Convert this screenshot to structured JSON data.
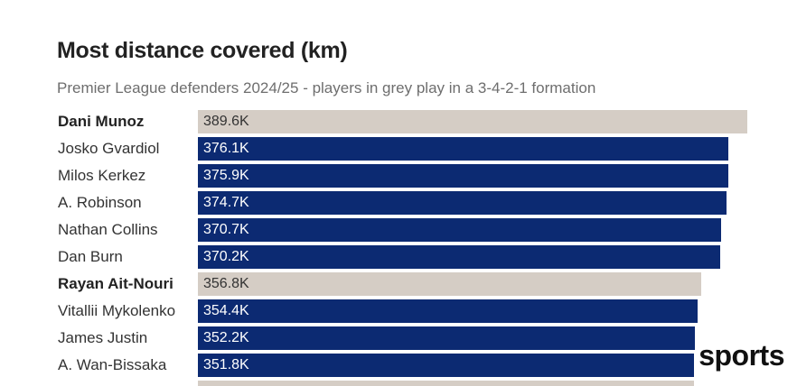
{
  "chart_data": {
    "type": "bar",
    "orientation": "horizontal",
    "title": "Most distance covered (km)",
    "subtitle": "Premier League defenders 2024/25 - players in grey play in a 3-4-2-1 formation",
    "xlim": [
      0,
      389.6
    ],
    "grid": false,
    "legend": "none",
    "colors": {
      "default": "#0c2a72",
      "highlight": "#d5cdc5",
      "highlight_text": "#333333",
      "default_text": "#ffffff"
    },
    "categories": [
      "Dani Munoz",
      "Josko Gvardiol",
      "Milos Kerkez",
      "A. Robinson",
      "Nathan Collins",
      "Dan Burn",
      "Rayan Ait-Nouri",
      "Vitallii Mykolenko",
      "James Justin",
      "A. Wan-Bissaka"
    ],
    "values": [
      389.6,
      376.1,
      375.9,
      374.7,
      370.7,
      370.2,
      356.8,
      354.4,
      352.2,
      351.8
    ],
    "value_labels": [
      "389.6K",
      "376.1K",
      "375.9K",
      "374.7K",
      "370.7K",
      "370.2K",
      "356.8K",
      "354.4K",
      "352.2K",
      "351.8K"
    ],
    "highlighted": [
      true,
      false,
      false,
      false,
      false,
      false,
      true,
      false,
      false,
      false
    ],
    "partial_last_value": 351.5
  },
  "branding": {
    "logo_text": "sports"
  }
}
